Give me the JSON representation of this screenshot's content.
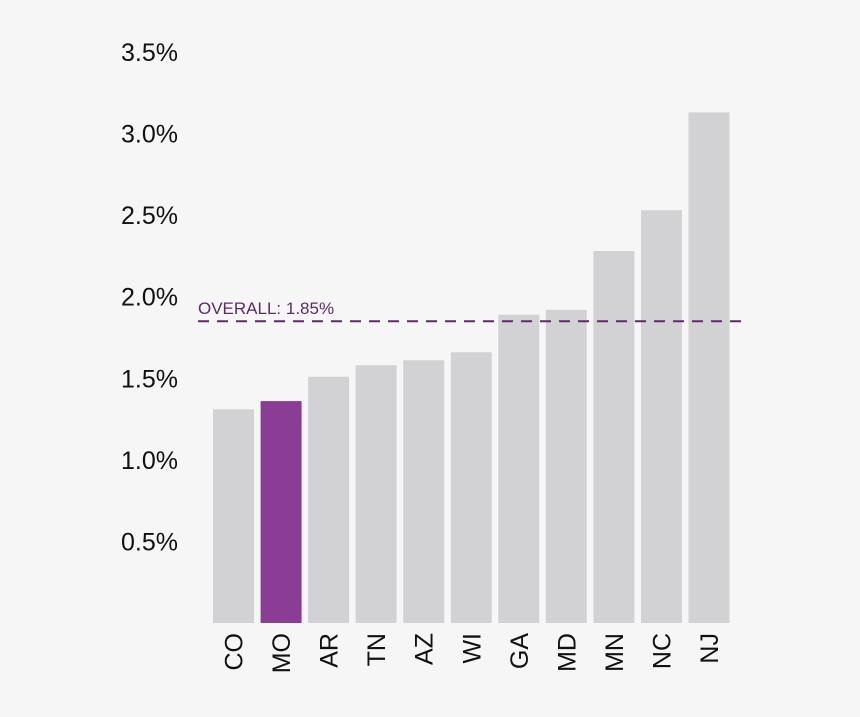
{
  "chart_data": {
    "type": "bar",
    "categories": [
      "CO",
      "MO",
      "AR",
      "TN",
      "AZ",
      "WI",
      "GA",
      "MD",
      "MN",
      "NC",
      "NJ"
    ],
    "values": [
      1.31,
      1.36,
      1.51,
      1.58,
      1.61,
      1.66,
      1.89,
      1.92,
      2.28,
      2.53,
      3.13
    ],
    "highlight": "MO",
    "ylim": [
      0,
      3.5
    ],
    "yticks": [
      {
        "value": 0.5,
        "label": "0.5%"
      },
      {
        "value": 1.0,
        "label": "1.0%"
      },
      {
        "value": 1.5,
        "label": "1.5%"
      },
      {
        "value": 2.0,
        "label": "2.0%"
      },
      {
        "value": 2.5,
        "label": "2.5%"
      },
      {
        "value": 3.0,
        "label": "3.0%"
      },
      {
        "value": 3.5,
        "label": "3.5%"
      }
    ],
    "reference_line": {
      "value": 1.85,
      "label": "OVERALL: 1.85%",
      "style": "dashed"
    },
    "grid": false,
    "colors": {
      "bar": "#d2d2d4",
      "highlight": "#8b3d96",
      "reference": "#5e2a67",
      "background": "#f6f6f6"
    }
  }
}
